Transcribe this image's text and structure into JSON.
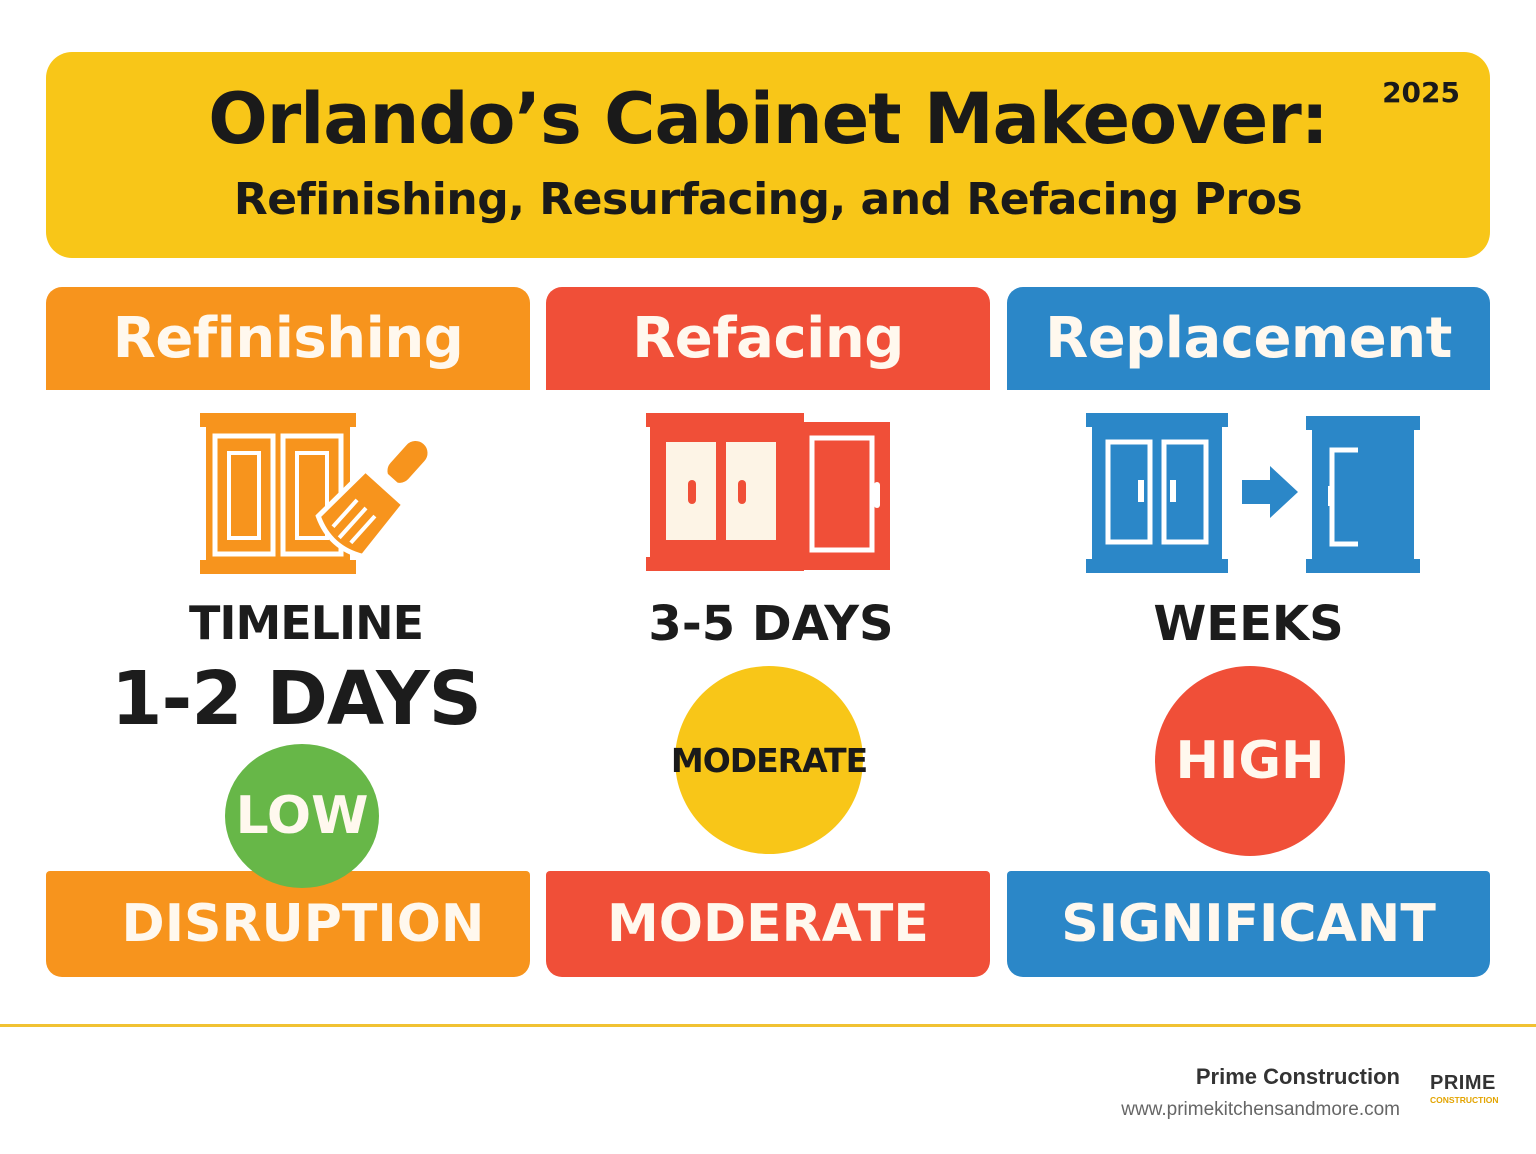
{
  "banner": {
    "title": "Orlando’s Cabinet Makeover:",
    "subtitle": "Refinishing, Resurfacing, and Refacing Pros",
    "year": "2025"
  },
  "columns": [
    {
      "header": "Refinishing",
      "icon": "cabinet-paintbrush-icon",
      "line1": "TIMELINE",
      "line2": "1-2 DAYS",
      "badge": "LOW",
      "badge_color": "#67b748",
      "footer": "DISRUPTION",
      "color": "#f7941d"
    },
    {
      "header": "Refacing",
      "icon": "cabinet-new-door-icon",
      "line1": "3-5 DAYS",
      "badge": "MODERATE",
      "badge_color": "#f8c618",
      "footer": "MODERATE",
      "color": "#f04f38"
    },
    {
      "header": "Replacement",
      "icon": "cabinet-swap-icon",
      "line1": "WEEKS",
      "badge": "HIGH",
      "badge_color": "#f04f38",
      "footer": "SIGNIFICANT",
      "color": "#2b87c8"
    }
  ],
  "footer": {
    "brand": "Prime Construction",
    "url": "www.primekitchensandmore.com",
    "logo_word": "PRIME",
    "logo_sub": "CONSTRUCTION"
  }
}
